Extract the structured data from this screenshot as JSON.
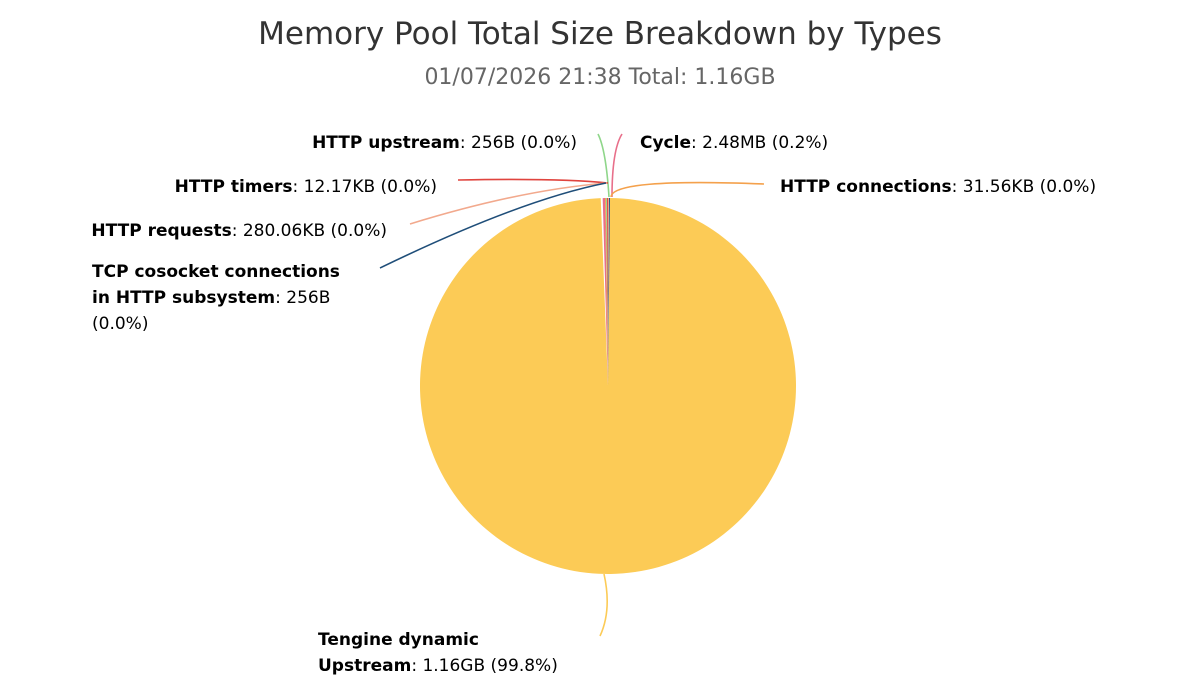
{
  "chart_data": {
    "type": "pie",
    "title": "Memory Pool Total Size Breakdown by Types",
    "subtitle": "01/07/2026 21:38 Total: 1.16GB",
    "slices": [
      {
        "name": "Tengine dynamic Upstream",
        "value": "1.16GB",
        "percent": 99.8,
        "percent_label": "(99.8%)",
        "color": "#fccb56"
      },
      {
        "name": "Cycle",
        "value": "2.48MB",
        "percent": 0.2,
        "percent_label": "(0.2%)",
        "color": "#e86f8a"
      },
      {
        "name": "HTTP connections",
        "value": "31.56KB",
        "percent": 0.0,
        "percent_label": "(0.0%)",
        "color": "#f4a14c"
      },
      {
        "name": "HTTP upstream",
        "value": "256B",
        "percent": 0.0,
        "percent_label": "(0.0%)",
        "color": "#8fd68a"
      },
      {
        "name": "HTTP timers",
        "value": "12.17KB",
        "percent": 0.0,
        "percent_label": "(0.0%)",
        "color": "#e0443e"
      },
      {
        "name": "HTTP requests",
        "value": "280.06KB",
        "percent": 0.0,
        "percent_label": "(0.0%)",
        "color": "#f2a98d"
      },
      {
        "name": "TCP cosocket connections in HTTP subsystem",
        "value": "256B",
        "percent": 0.0,
        "percent_label": "(0.0%)",
        "color": "#1f4e79"
      }
    ]
  }
}
